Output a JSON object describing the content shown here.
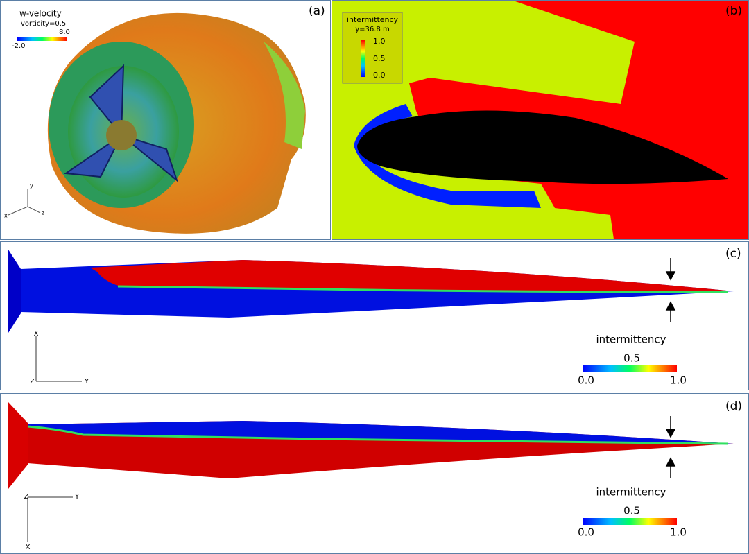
{
  "panels": [
    {
      "label": "(a)",
      "legend": {
        "title": "w-velocity",
        "subtitle": "vorticity=0.5",
        "min": "-2.0",
        "max": "8.0"
      },
      "axes": [
        "y",
        "z",
        "x"
      ]
    },
    {
      "label": "(b)",
      "legend": {
        "title": "intermittency",
        "subtitle": "y=36.8 m",
        "ticks": [
          "1.0",
          "0.5",
          "0.0"
        ]
      }
    },
    {
      "label": "(c)",
      "legend": {
        "title": "intermittency",
        "ticks": [
          "0.0",
          "0.5",
          "1.0"
        ]
      },
      "axes": [
        "X",
        "Y",
        "Z"
      ]
    },
    {
      "label": "(d)",
      "legend": {
        "title": "intermittency",
        "ticks": [
          "0.0",
          "0.5",
          "1.0"
        ]
      },
      "axes": [
        "Z",
        "Y",
        "X"
      ]
    }
  ]
}
